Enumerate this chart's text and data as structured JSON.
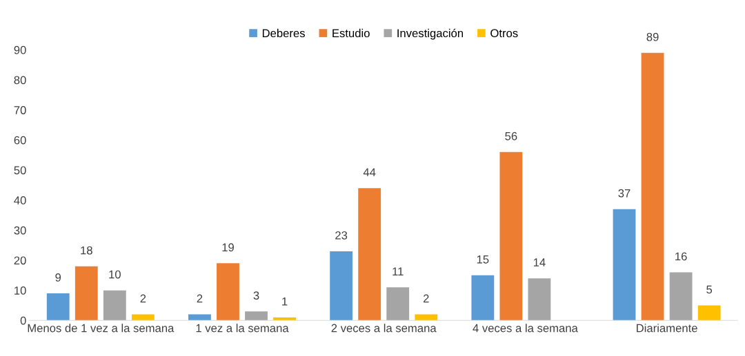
{
  "chart_data": {
    "type": "bar",
    "categories": [
      "Menos de 1 vez a la semana",
      "1 vez a la semana",
      "2 veces a la semana",
      "4 veces a la semana",
      "Diariamente"
    ],
    "series": [
      {
        "name": "Deberes",
        "color": "#5b9bd5",
        "values": [
          9,
          2,
          23,
          15,
          37
        ]
      },
      {
        "name": "Estudio",
        "color": "#ed7d31",
        "values": [
          18,
          19,
          44,
          56,
          89
        ]
      },
      {
        "name": "Investigación",
        "color": "#a5a5a5",
        "values": [
          10,
          3,
          11,
          14,
          16
        ]
      },
      {
        "name": "Otros",
        "color": "#ffc000",
        "values": [
          2,
          1,
          2,
          null,
          5
        ]
      }
    ],
    "ylim": [
      0,
      90
    ],
    "yticks": [
      0,
      10,
      20,
      30,
      40,
      50,
      60,
      70,
      80,
      90
    ],
    "data_labels": true,
    "grid": false,
    "legend": "top"
  }
}
